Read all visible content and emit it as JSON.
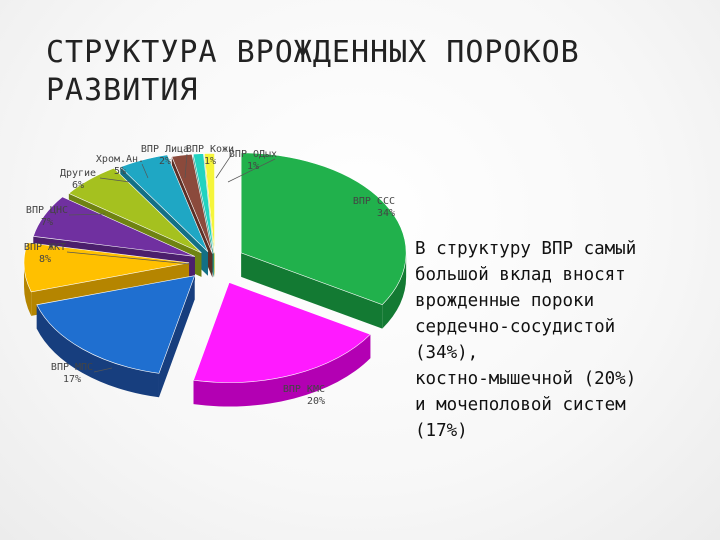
{
  "slide": {
    "title_line1": "СТРУКТУРА ВРОЖДЕННЫХ ПОРОКОВ",
    "title_line2": "РАЗВИТИЯ",
    "body_lines": [
      "В структуру ВПР самый",
      "большой вклад вносят",
      "врожденные пороки",
      "сердечно-сосудистой",
      "(34%),",
      "костно-мышечной (20%)",
      "и мочеполовой систем",
      "(17%)"
    ]
  },
  "chart_data": {
    "type": "pie",
    "style": "3d-exploded",
    "slices": [
      {
        "label": "ВПР ССС",
        "value": 34,
        "display": "34%",
        "color": "#21b14c",
        "side": "#137a33"
      },
      {
        "label": "ВПР КМС",
        "value": 20,
        "display": "20%",
        "color": "#ff1aff",
        "side": "#b300b3"
      },
      {
        "label": "ВПР МПС",
        "value": 17,
        "display": "17%",
        "color": "#1f6fd0",
        "side": "#173e7e"
      },
      {
        "label": "ВПР ЖКТ",
        "value": 8,
        "display": "8%",
        "color": "#ffc000",
        "side": "#b58500"
      },
      {
        "label": "ВПР ЦНС",
        "value": 7,
        "display": "7%",
        "color": "#7030a0",
        "side": "#4b1f6c"
      },
      {
        "label": "Другие",
        "value": 6,
        "display": "6%",
        "color": "#a5c11f",
        "side": "#6f8312"
      },
      {
        "label": "Хром.Ан.",
        "value": 5,
        "display": "5%",
        "color": "#1fa7c4",
        "side": "#137085"
      },
      {
        "label": "ВПР Лица",
        "value": 2,
        "display": "2%",
        "color": "#8b4a3c",
        "side": "#5c2f26"
      },
      {
        "label": "ВПР Кожи",
        "value": 1,
        "display": "1%",
        "color": "#21d3c0",
        "side": "#13897c"
      },
      {
        "label": "ВПР ОДых",
        "value": 1,
        "display": "1%",
        "color": "#f5f53a",
        "side": "#b5b51f"
      }
    ]
  }
}
